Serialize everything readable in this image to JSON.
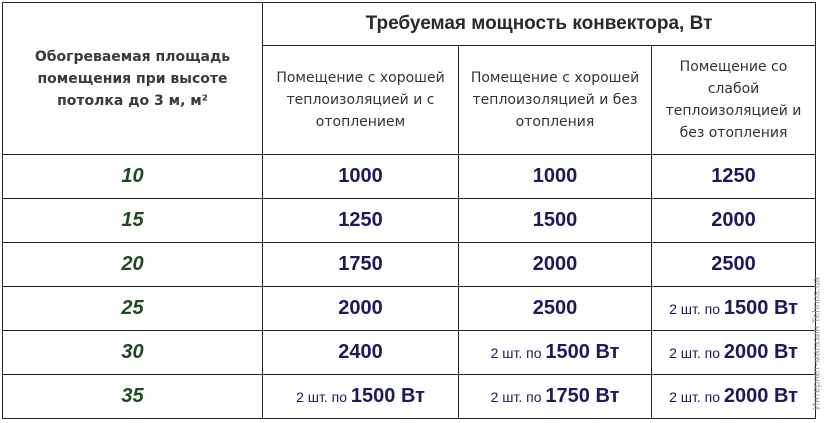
{
  "table": {
    "area_header": "Обогреваемая площадь помещения при высоте потолка до 3 м, м²",
    "power_header": "Требуемая мощность конвектора, Вт",
    "columns": [
      "Помещение с хорошей теплоизоляцией и с отоплением",
      "Помещение с хорошей теплоизоляцией и без отопления",
      "Помещение со слабой теплоизоляцией и без отопления"
    ],
    "rows": [
      {
        "area": "10",
        "cells": [
          {
            "pre": "",
            "num": "1000"
          },
          {
            "pre": "",
            "num": "1000"
          },
          {
            "pre": "",
            "num": "1250"
          }
        ]
      },
      {
        "area": "15",
        "cells": [
          {
            "pre": "",
            "num": "1250"
          },
          {
            "pre": "",
            "num": "1500"
          },
          {
            "pre": "",
            "num": "2000"
          }
        ]
      },
      {
        "area": "20",
        "cells": [
          {
            "pre": "",
            "num": "1750"
          },
          {
            "pre": "",
            "num": "2000"
          },
          {
            "pre": "",
            "num": "2500"
          }
        ]
      },
      {
        "area": "25",
        "cells": [
          {
            "pre": "",
            "num": "2000"
          },
          {
            "pre": "",
            "num": "2500"
          },
          {
            "pre": "2 шт. по ",
            "num": "1500 Вт"
          }
        ]
      },
      {
        "area": "30",
        "cells": [
          {
            "pre": "",
            "num": "2400"
          },
          {
            "pre": "2 шт. по ",
            "num": "1500 Вт"
          },
          {
            "pre": "2 шт. по ",
            "num": "2000 Вт"
          }
        ]
      },
      {
        "area": "35",
        "cells": [
          {
            "pre": "2 шт. по ",
            "num": "1500 Вт"
          },
          {
            "pre": "2 шт. по ",
            "num": "1750 Вт"
          },
          {
            "pre": "2 шт. по ",
            "num": "2000 Вт"
          }
        ]
      }
    ]
  },
  "watermark": "Интернет-магазин Tehnos.ua",
  "colors": {
    "area_text": "#1f4a1f",
    "value_text": "#1a1a5c"
  }
}
